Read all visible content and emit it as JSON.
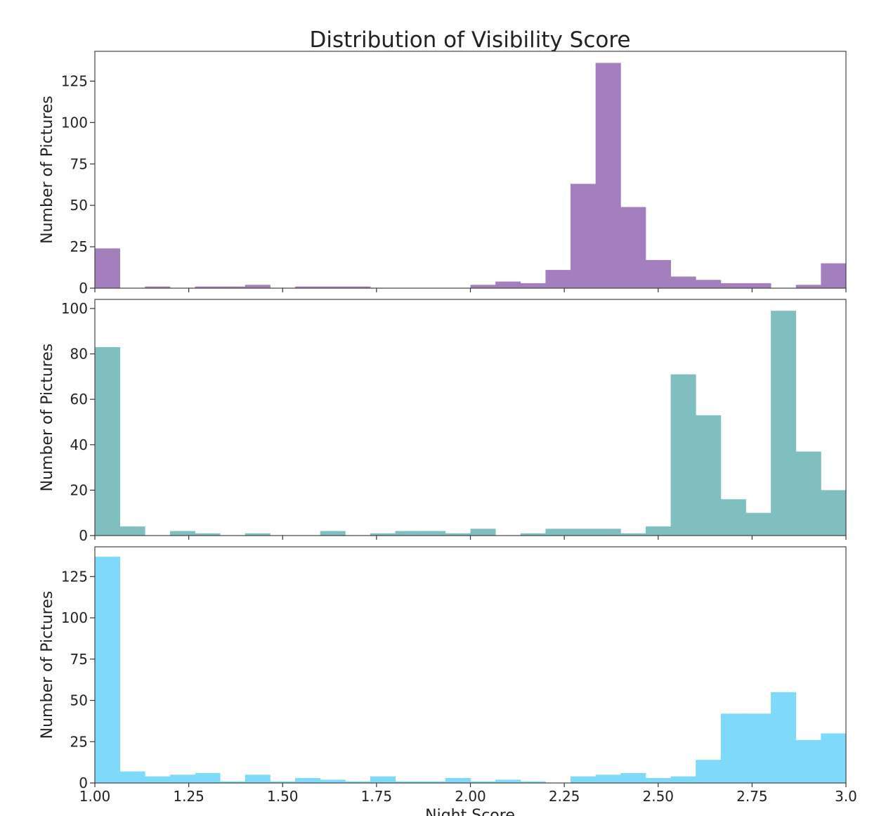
{
  "title": "Distribution of Visibility Score",
  "xlabel": "Night Score",
  "chart_data": {
    "type": "bar",
    "title": "Distribution of Visibility Score",
    "xlabel": "Night Score",
    "xlim": [
      1.0,
      3.0
    ],
    "x_ticks": [
      "1.00",
      "1.25",
      "1.50",
      "1.75",
      "2.00",
      "2.25",
      "2.50",
      "2.75",
      "3.0"
    ],
    "bin_edges_start": 1.0,
    "bin_width": 0.0667,
    "panels": [
      {
        "ylabel": "Number of Pictures",
        "color": "#a37fbe",
        "ylim": [
          0,
          143
        ],
        "y_ticks": [
          0,
          25,
          50,
          75,
          100,
          125
        ],
        "values": [
          24,
          0,
          1,
          0,
          1,
          1,
          2,
          0,
          1,
          1,
          1,
          0,
          0,
          0,
          0,
          2,
          4,
          3,
          11,
          63,
          136,
          49,
          17,
          7,
          5,
          3,
          3,
          0,
          2,
          15
        ]
      },
      {
        "ylabel": "Number of Pictures",
        "color": "#80bfbf",
        "ylim": [
          0,
          104
        ],
        "y_ticks": [
          0,
          20,
          40,
          60,
          80,
          100
        ],
        "values": [
          83,
          4,
          0,
          2,
          1,
          0,
          1,
          0,
          0,
          2,
          0,
          1,
          2,
          2,
          1,
          3,
          0,
          1,
          3,
          3,
          3,
          1,
          4,
          71,
          53,
          16,
          10,
          99,
          37,
          20
        ]
      },
      {
        "ylabel": "Number of Pictures",
        "color": "#7fd9fb",
        "ylim": [
          0,
          143
        ],
        "y_ticks": [
          0,
          25,
          50,
          75,
          100,
          125
        ],
        "values": [
          137,
          7,
          4,
          5,
          6,
          1,
          5,
          1,
          3,
          2,
          1,
          4,
          1,
          1,
          3,
          1,
          2,
          1,
          0,
          4,
          5,
          6,
          3,
          4,
          14,
          42,
          42,
          55,
          26,
          30
        ]
      }
    ]
  }
}
